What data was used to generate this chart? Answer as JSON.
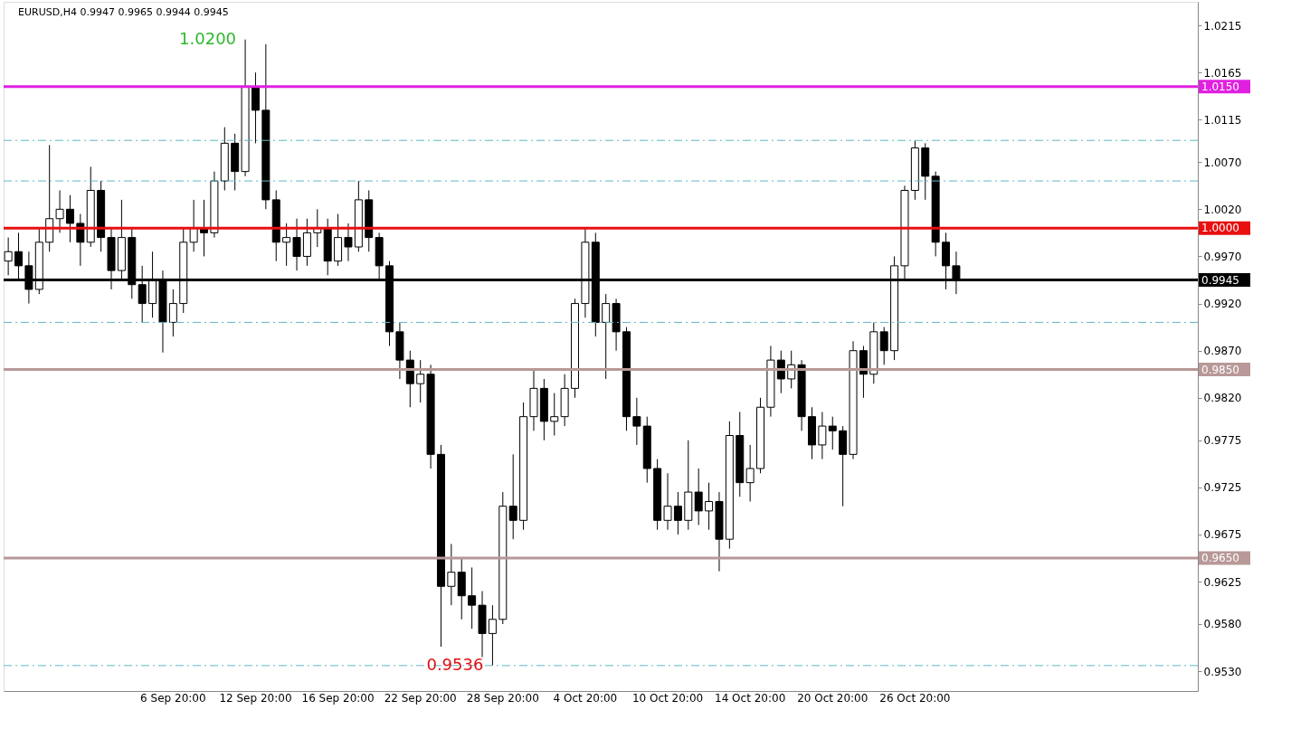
{
  "chart_data": {
    "type": "candlestick",
    "title": "EURUSD,H4  0.9947 0.9965 0.9944 0.9945",
    "color": "#000000",
    "grid": false,
    "categories": [
      null,
      null,
      null,
      null,
      null,
      null,
      null,
      null,
      null,
      null,
      null,
      null,
      null,
      null,
      null,
      null,
      "6 Sep 20:00",
      null,
      null,
      null,
      null,
      null,
      null,
      null,
      "12 Sep 20:00",
      null,
      null,
      null,
      null,
      null,
      null,
      null,
      "16 Sep 20:00",
      null,
      null,
      null,
      null,
      null,
      null,
      null,
      "22 Sep 20:00",
      null,
      null,
      null,
      null,
      null,
      null,
      null,
      "28 Sep 20:00",
      null,
      null,
      null,
      null,
      null,
      null,
      null,
      "4 Oct 20:00",
      null,
      null,
      null,
      null,
      null,
      null,
      null,
      "10 Oct 20:00",
      null,
      null,
      null,
      null,
      null,
      null,
      null,
      "14 Oct 20:00",
      null,
      null,
      null,
      null,
      null,
      null,
      null,
      "20 Oct 20:00",
      null,
      null,
      null,
      null,
      null,
      null,
      null,
      "26 Oct 20:00",
      null,
      null,
      null,
      null,
      null,
      null,
      null,
      null,
      null,
      null,
      null,
      null,
      null,
      null,
      null,
      null,
      null,
      null,
      null,
      null,
      null,
      null,
      null,
      null,
      null,
      null,
      null
    ],
    "ohlc": [
      [
        0.9965,
        0.999,
        0.995,
        0.9975
      ],
      [
        0.9975,
        0.9995,
        0.9945,
        0.996
      ],
      [
        0.996,
        0.9975,
        0.992,
        0.9935
      ],
      [
        0.9935,
        1.0,
        0.993,
        0.9985
      ],
      [
        0.9985,
        1.0088,
        0.9975,
        1.001
      ],
      [
        1.001,
        1.004,
        0.9995,
        1.002
      ],
      [
        1.002,
        1.0035,
        0.9985,
        1.0005
      ],
      [
        1.0005,
        1.0015,
        0.996,
        0.9985
      ],
      [
        0.9985,
        1.0065,
        0.998,
        1.004
      ],
      [
        1.004,
        1.005,
        0.9975,
        0.999
      ],
      [
        0.999,
        1.0,
        0.9935,
        0.9955
      ],
      [
        0.9955,
        1.003,
        0.9945,
        0.999
      ],
      [
        0.999,
        1.0,
        0.9925,
        0.994
      ],
      [
        0.994,
        0.996,
        0.99,
        0.992
      ],
      [
        0.992,
        0.9975,
        0.9905,
        0.9945
      ],
      [
        0.9945,
        0.9955,
        0.9868,
        0.99
      ],
      [
        0.99,
        0.9935,
        0.9885,
        0.992
      ],
      [
        0.992,
        1.0,
        0.991,
        0.9985
      ],
      [
        0.9985,
        1.003,
        0.9975,
        1.0
      ],
      [
        1.0,
        1.003,
        0.997,
        0.9995
      ],
      [
        0.9995,
        1.006,
        0.999,
        1.005
      ],
      [
        1.005,
        1.0107,
        1.004,
        1.009
      ],
      [
        1.009,
        1.01,
        1.004,
        1.006
      ],
      [
        1.006,
        1.02,
        1.0055,
        1.015
      ],
      [
        1.015,
        1.0165,
        1.009,
        1.0125
      ],
      [
        1.0125,
        1.0195,
        1.002,
        1.003
      ],
      [
        1.003,
        1.004,
        0.9965,
        0.9985
      ],
      [
        0.9985,
        1.0005,
        0.996,
        0.999
      ],
      [
        0.999,
        1.001,
        0.9955,
        0.997
      ],
      [
        0.997,
        1.001,
        0.996,
        0.9995
      ],
      [
        0.9995,
        1.002,
        0.998,
        1.0
      ],
      [
        1.0,
        1.001,
        0.995,
        0.9965
      ],
      [
        0.9965,
        1.0015,
        0.996,
        0.999
      ],
      [
        0.999,
        1.0005,
        0.9965,
        0.998
      ],
      [
        0.998,
        1.005,
        0.9975,
        1.003
      ],
      [
        1.003,
        1.004,
        0.9975,
        0.999
      ],
      [
        0.999,
        0.9995,
        0.9945,
        0.996
      ],
      [
        0.996,
        0.9965,
        0.9875,
        0.989
      ],
      [
        0.989,
        0.99,
        0.984,
        0.986
      ],
      [
        0.986,
        0.987,
        0.981,
        0.9835
      ],
      [
        0.9835,
        0.986,
        0.9815,
        0.9845
      ],
      [
        0.9845,
        0.9855,
        0.9745,
        0.976
      ],
      [
        0.976,
        0.977,
        0.9556,
        0.962
      ],
      [
        0.962,
        0.9665,
        0.96,
        0.9635
      ],
      [
        0.9635,
        0.965,
        0.9585,
        0.961
      ],
      [
        0.961,
        0.964,
        0.9575,
        0.96
      ],
      [
        0.96,
        0.9615,
        0.9545,
        0.957
      ],
      [
        0.957,
        0.96,
        0.9536,
        0.9585
      ],
      [
        0.9585,
        0.972,
        0.958,
        0.9705
      ],
      [
        0.9705,
        0.976,
        0.967,
        0.969
      ],
      [
        0.969,
        0.9815,
        0.968,
        0.98
      ],
      [
        0.98,
        0.985,
        0.9785,
        0.983
      ],
      [
        0.983,
        0.984,
        0.9775,
        0.9795
      ],
      [
        0.9795,
        0.9825,
        0.978,
        0.98
      ],
      [
        0.98,
        0.9845,
        0.979,
        0.983
      ],
      [
        0.983,
        0.9925,
        0.982,
        0.992
      ],
      [
        0.992,
        1.0,
        0.9905,
        0.9985
      ],
      [
        0.9985,
        0.9995,
        0.9885,
        0.99
      ],
      [
        0.99,
        0.993,
        0.984,
        0.992
      ],
      [
        0.992,
        0.9925,
        0.987,
        0.989
      ],
      [
        0.989,
        0.9895,
        0.9785,
        0.98
      ],
      [
        0.98,
        0.982,
        0.977,
        0.979
      ],
      [
        0.979,
        0.98,
        0.973,
        0.9745
      ],
      [
        0.9745,
        0.9755,
        0.968,
        0.969
      ],
      [
        0.969,
        0.974,
        0.968,
        0.9705
      ],
      [
        0.9705,
        0.972,
        0.9675,
        0.969
      ],
      [
        0.969,
        0.9775,
        0.968,
        0.972
      ],
      [
        0.972,
        0.9745,
        0.9685,
        0.97
      ],
      [
        0.97,
        0.973,
        0.968,
        0.971
      ],
      [
        0.971,
        0.972,
        0.9636,
        0.967
      ],
      [
        0.967,
        0.9795,
        0.966,
        0.978
      ],
      [
        0.978,
        0.9805,
        0.9715,
        0.973
      ],
      [
        0.973,
        0.977,
        0.971,
        0.9745
      ],
      [
        0.9745,
        0.982,
        0.974,
        0.981
      ],
      [
        0.981,
        0.9875,
        0.98,
        0.986
      ],
      [
        0.986,
        0.987,
        0.9825,
        0.984
      ],
      [
        0.984,
        0.987,
        0.983,
        0.9855
      ],
      [
        0.9855,
        0.986,
        0.9785,
        0.98
      ],
      [
        0.98,
        0.981,
        0.9755,
        0.977
      ],
      [
        0.977,
        0.9805,
        0.9755,
        0.979
      ],
      [
        0.979,
        0.98,
        0.9765,
        0.9785
      ],
      [
        0.9785,
        0.979,
        0.9705,
        0.976
      ],
      [
        0.976,
        0.988,
        0.9755,
        0.987
      ],
      [
        0.987,
        0.9875,
        0.982,
        0.9845
      ],
      [
        0.9845,
        0.99,
        0.9835,
        0.989
      ],
      [
        0.989,
        0.9895,
        0.9855,
        0.987
      ],
      [
        0.987,
        0.997,
        0.986,
        0.996
      ],
      [
        0.996,
        1.0045,
        0.9945,
        1.004
      ],
      [
        1.004,
        1.0093,
        1.003,
        1.0085
      ],
      [
        1.0085,
        1.009,
        1.003,
        1.0055
      ],
      [
        1.0055,
        1.006,
        0.997,
        0.9985
      ],
      [
        0.9985,
        0.9995,
        0.9935,
        0.996
      ],
      [
        0.996,
        0.9975,
        0.993,
        0.9945
      ],
      null,
      null,
      null,
      null,
      null,
      null,
      null,
      null,
      null,
      null,
      null,
      null,
      null,
      null,
      null,
      null,
      null,
      null,
      null,
      null,
      null,
      null,
      null
    ],
    "ylim": [
      0.9509,
      1.024
    ],
    "yticks": [
      1.0215,
      1.0165,
      1.0115,
      {
        "value": 1.007,
        "label": "1.0070"
      },
      {
        "value": 1.002,
        "label": "1.0020"
      },
      {
        "value": 0.997,
        "label": "0.9970"
      },
      {
        "value": 0.992,
        "label": "0.9920"
      },
      {
        "value": 0.987,
        "label": "0.9870"
      },
      {
        "value": 0.982,
        "label": "0.9820"
      },
      0.9775,
      0.9725,
      0.9675,
      0.9625,
      {
        "value": 0.958,
        "label": "0.9580"
      },
      {
        "value": 0.953,
        "label": "0.9530"
      }
    ],
    "ref_lines": [
      {
        "axis": "y",
        "value": 1.015,
        "label": "1.0150",
        "color": "#e020e0",
        "line_style": "solid"
      },
      {
        "axis": "y",
        "value": 1.0,
        "label": "1.0000",
        "color": "#e81010",
        "line_style": "solid"
      },
      {
        "axis": "y",
        "value": 0.985,
        "label": "0.9850",
        "color": "#b89898",
        "line_style": "solid"
      },
      {
        "axis": "y",
        "value": 0.965,
        "label": "0.9650",
        "color": "#b89898",
        "line_style": "solid"
      },
      {
        "axis": "y",
        "value": 0.9945,
        "label": "0.9945",
        "color": "#000000",
        "line_style": "solid"
      },
      {
        "axis": "y",
        "value": 1.0093,
        "color": "#5fb8c8",
        "line_style": "dashed"
      },
      {
        "axis": "y",
        "value": 1.005,
        "color": "#5fb8c8",
        "line_style": "dashed"
      },
      {
        "axis": "y",
        "value": 0.99,
        "color": "#5fb8c8",
        "line_style": "dashed"
      },
      {
        "axis": "y",
        "value": 0.9536,
        "color": "#5fb8c8",
        "line_style": "dashed"
      }
    ],
    "annotations": [
      "1.0200",
      "0.9536"
    ]
  }
}
